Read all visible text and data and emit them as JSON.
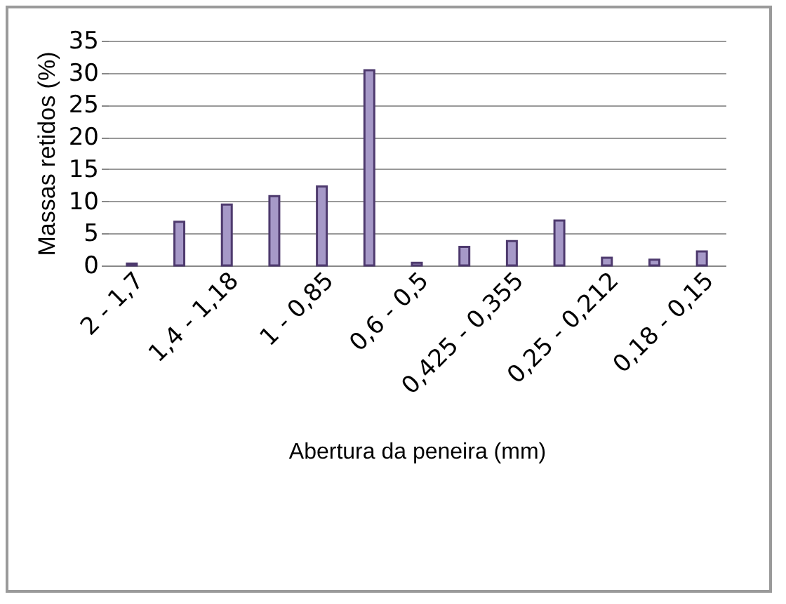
{
  "chart_data": {
    "type": "bar",
    "xlabel": "Abertura da peneira (mm)",
    "ylabel": "Massas retidos (%)",
    "categories": [
      "2 - 1,7",
      null,
      "1,4 - 1,18",
      null,
      "1 - 0,85",
      null,
      "0,6 - 0,5",
      null,
      "0,425 - 0,355",
      null,
      "0,25 - 0,212",
      null,
      "0,18 - 0,15"
    ],
    "values": [
      0.3,
      6.8,
      9.5,
      10.8,
      12.3,
      30.4,
      0.4,
      2.9,
      3.8,
      7.0,
      1.2,
      0.9,
      2.2
    ],
    "color": "#a699c8",
    "ylim": [
      0,
      35
    ],
    "yticks": [
      0,
      5,
      10,
      15,
      20,
      25,
      30,
      35
    ],
    "grid": "y"
  }
}
